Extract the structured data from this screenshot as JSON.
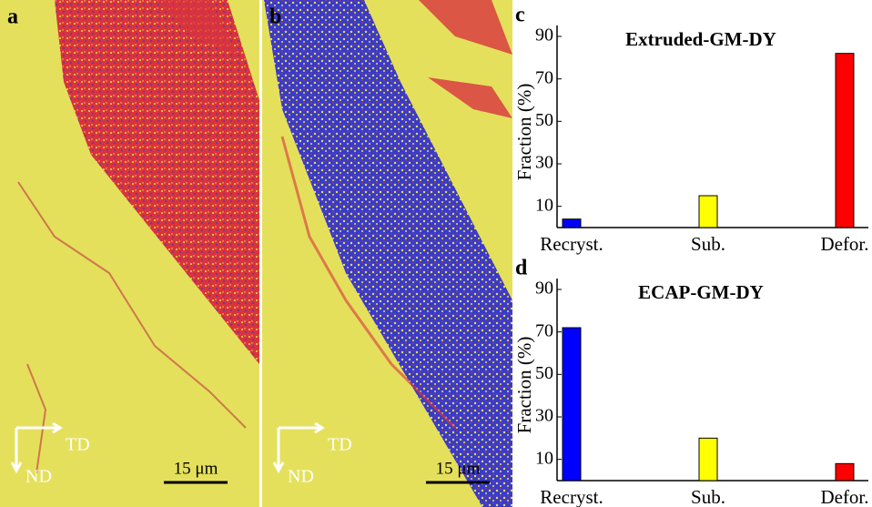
{
  "panels": [
    {
      "label": "a",
      "axis_x": "TD",
      "axis_y": "ND",
      "scale": "15 μm"
    },
    {
      "label": "b",
      "axis_x": "TD",
      "axis_y": "ND",
      "scale": "15 μm"
    }
  ],
  "chart_data": [
    {
      "type": "bar",
      "panel_label": "c",
      "title": "Extruded-GM-DY",
      "y_label": "Fraction (%)",
      "categories": [
        "Recryst.",
        "Sub.",
        "Defor."
      ],
      "values": [
        4,
        15,
        82
      ],
      "colors": [
        "#0000ff",
        "#ffff00",
        "#ff0000"
      ],
      "ylim": [
        0,
        90
      ],
      "yticks": [
        10,
        30,
        50,
        70,
        90
      ],
      "grid": false
    },
    {
      "type": "bar",
      "panel_label": "d",
      "title": "ECAP-GM-DY",
      "y_label": "Fraction (%)",
      "categories": [
        "Recryst.",
        "Sub.",
        "Defor."
      ],
      "values": [
        72,
        20,
        8
      ],
      "colors": [
        "#0000ff",
        "#ffff00",
        "#ff0000"
      ],
      "ylim": [
        0,
        90
      ],
      "yticks": [
        10,
        30,
        50,
        70,
        90
      ],
      "grid": false
    }
  ]
}
